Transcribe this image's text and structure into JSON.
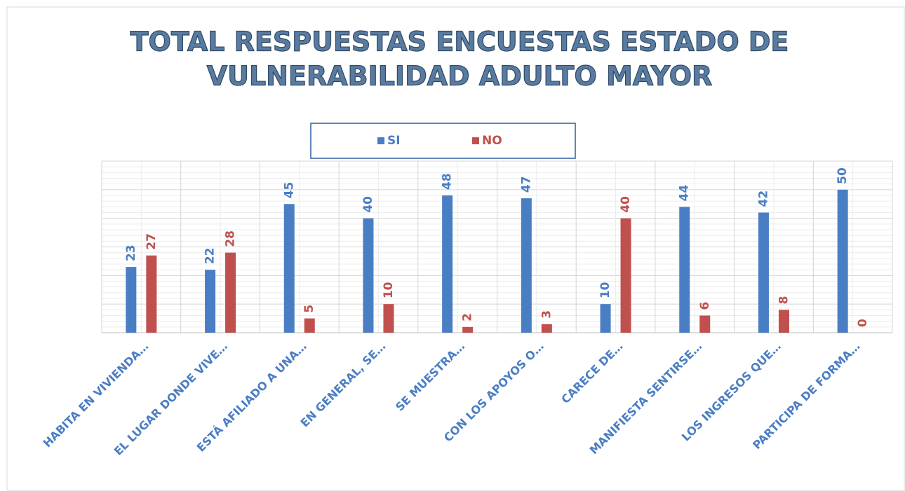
{
  "chart_data": {
    "type": "bar",
    "title": [
      "TOTAL RESPUESTAS ENCUESTAS ESTADO DE",
      "VULNERABILIDAD ADULTO MAYOR"
    ],
    "categories": [
      "HABITA EN VIVIENDA…",
      "EL LUGAR DONDE VIVE…",
      "ESTÁ AFILIADO A UNA…",
      "EN GENERAL, SE…",
      "SE MUESTRA…",
      "CON LOS APOYOS O…",
      "CARECE DE…",
      "MANIFIESTA SENTIRSE…",
      "LOS INGRESOS QUE…",
      "PARTICIPA DE FORMA…"
    ],
    "series": [
      {
        "name": "SI",
        "color": "#4a7ec4",
        "values": [
          23,
          22,
          45,
          40,
          48,
          47,
          10,
          44,
          42,
          50
        ]
      },
      {
        "name": "NO",
        "color": "#c0504d",
        "values": [
          27,
          28,
          5,
          10,
          2,
          3,
          40,
          6,
          8,
          0
        ]
      }
    ],
    "ylim": [
      0,
      60
    ],
    "yticks": [
      0,
      10,
      20,
      30,
      40,
      50,
      60
    ],
    "grid": true,
    "legend": "top"
  }
}
